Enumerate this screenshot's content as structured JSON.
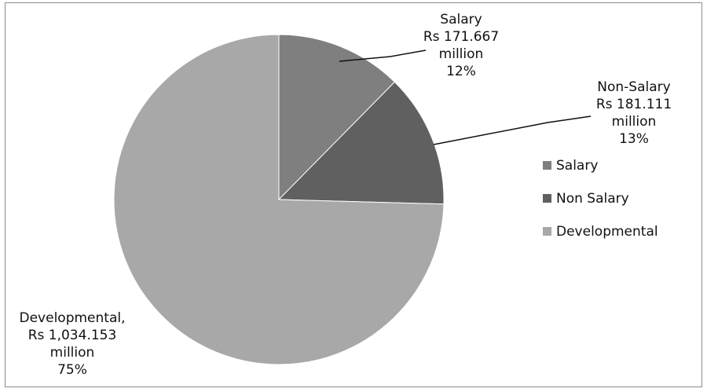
{
  "chart_data": {
    "type": "pie",
    "title": "",
    "slices": [
      {
        "name": "Salary",
        "value": 171.667,
        "percent": 12,
        "color": "#7f7f7f",
        "label_lines": [
          "Salary",
          "Rs 171.667",
          "million",
          "12%"
        ]
      },
      {
        "name": "Non Salary",
        "value": 181.111,
        "percent": 13,
        "color": "#606060",
        "label_lines": [
          "Non-Salary",
          "Rs 181.111",
          "million",
          "13%"
        ]
      },
      {
        "name": "Developmental",
        "value": 1034.153,
        "percent": 75,
        "color": "#a8a8a8",
        "label_lines": [
          "Developmental,",
          "Rs 1,034.153",
          "million",
          "75%"
        ]
      }
    ],
    "legend": {
      "position": "right",
      "entries": [
        "Salary",
        "Non Salary",
        "Developmental"
      ]
    }
  }
}
